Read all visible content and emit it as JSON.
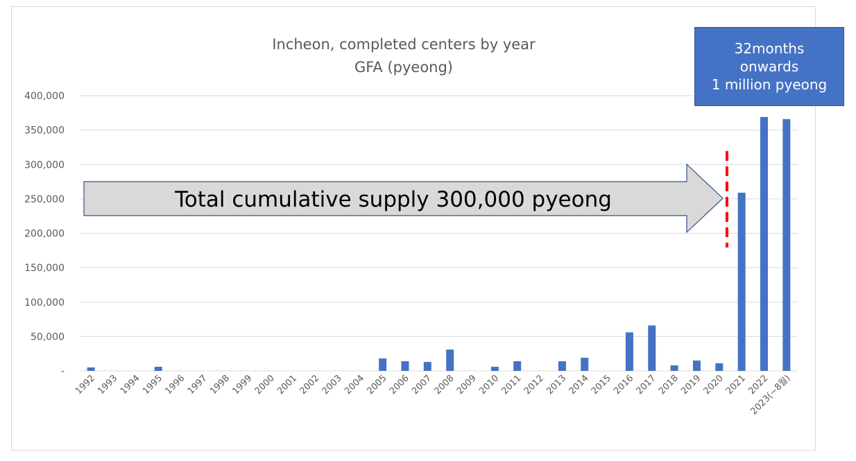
{
  "chart_data": {
    "type": "bar",
    "title": [
      "Incheon, completed centers by year",
      "GFA (pyeong)"
    ],
    "categories": [
      "1992",
      "1993",
      "1994",
      "1995",
      "1996",
      "1997",
      "1998",
      "1999",
      "2000",
      "2001",
      "2002",
      "2003",
      "2004",
      "2005",
      "2006",
      "2007",
      "2008",
      "2009",
      "2010",
      "2011",
      "2012",
      "2013",
      "2014",
      "2015",
      "2016",
      "2017",
      "2018",
      "2019",
      "2020",
      "2021",
      "2022",
      "2023(~8월)"
    ],
    "values": [
      5000,
      0,
      0,
      6000,
      0,
      0,
      0,
      0,
      0,
      0,
      0,
      0,
      0,
      18000,
      14000,
      13000,
      31000,
      0,
      6000,
      14000,
      0,
      14000,
      19000,
      0,
      56000,
      66000,
      8000,
      15000,
      11000,
      259000,
      369000,
      366000
    ],
    "ylim": [
      0,
      400000
    ],
    "yticks": [
      0,
      50000,
      100000,
      150000,
      200000,
      250000,
      300000,
      350000,
      400000
    ],
    "ytick_labels": [
      "-",
      "50,000",
      "100,000",
      "150,000",
      "200,000",
      "250,000",
      "300,000",
      "350,000",
      "400,000"
    ],
    "grid": true,
    "legend": "none",
    "bar_color": "#4472c4",
    "annotations": {
      "arrow_label": "Total cumulative supply 300,000 pyeong",
      "arrow_color": "#d9d9d9",
      "divider_color": "#ff0000",
      "callout_lines": [
        "32months",
        "onwards",
        "1 million pyeong"
      ],
      "callout_color": "#4472c4"
    }
  }
}
